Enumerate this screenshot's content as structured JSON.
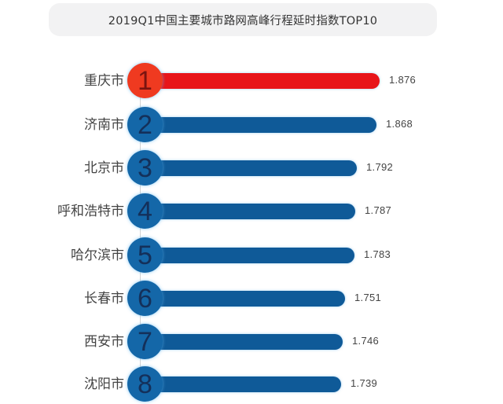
{
  "title": "2019Q1中国主要城市路网高峰行程延时指数TOP10",
  "colors": {
    "highlight_bar": "#e8151a",
    "highlight_badge": "#ef3a20",
    "highlight_num": "#7a1410",
    "bar": "#0f5a98",
    "badge": "#1467a8",
    "badge_num": "#14305a"
  },
  "rows": [
    {
      "rank": "1",
      "city": "重庆市",
      "value": "1.876"
    },
    {
      "rank": "2",
      "city": "济南市",
      "value": "1.868"
    },
    {
      "rank": "3",
      "city": "北京市",
      "value": "1.792"
    },
    {
      "rank": "4",
      "city": "呼和浩特市",
      "value": "1.787"
    },
    {
      "rank": "5",
      "city": "哈尔滨市",
      "value": "1.783"
    },
    {
      "rank": "6",
      "city": "长春市",
      "value": "1.751"
    },
    {
      "rank": "7",
      "city": "西安市",
      "value": "1.746"
    },
    {
      "rank": "8",
      "city": "沈阳市",
      "value": "1.739"
    }
  ],
  "chart_data": {
    "type": "bar",
    "orientation": "horizontal",
    "title": "2019Q1中国主要城市路网高峰行程延时指数TOP10",
    "categories": [
      "重庆市",
      "济南市",
      "北京市",
      "呼和浩特市",
      "哈尔滨市",
      "长春市",
      "西安市",
      "沈阳市"
    ],
    "values": [
      1.876,
      1.868,
      1.792,
      1.787,
      1.783,
      1.751,
      1.746,
      1.739
    ],
    "ranks": [
      1,
      2,
      3,
      4,
      5,
      6,
      7,
      8
    ],
    "xlabel": "",
    "ylabel": "",
    "grid": false,
    "legend": null,
    "data_labels": true,
    "highlighted_category": "重庆市"
  }
}
